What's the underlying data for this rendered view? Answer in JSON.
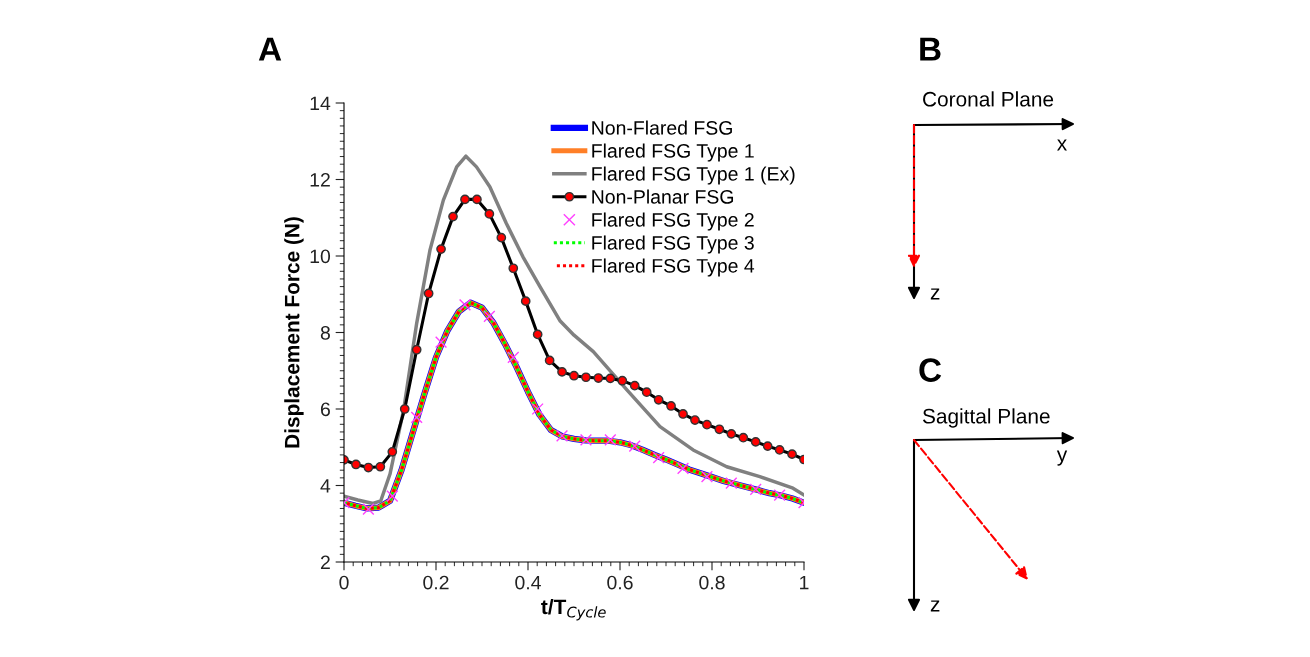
{
  "chart_data": {
    "type": "line",
    "xlabel": "t/T$_{Cycle}$",
    "ylabel": "Displacement Force (N)",
    "xlim": [
      0,
      1
    ],
    "ylim": [
      2,
      14
    ],
    "xticks": [
      0,
      0.2,
      0.4,
      0.6,
      0.8,
      1
    ],
    "yticks": [
      2,
      4,
      6,
      8,
      10,
      12,
      14
    ],
    "grid": false,
    "legend": "top right",
    "annotations": [
      "A",
      "B",
      "Coronal Plane",
      "x",
      "z",
      "C",
      "Sagittal Plane",
      "y",
      "z"
    ],
    "series": [
      {
        "name": "Non-Flared FSG",
        "type": "line",
        "color": "#0000ff",
        "line_style": "solid",
        "marker": "none",
        "x": [
          0,
          0.025,
          0.05,
          0.075,
          0.1,
          0.125,
          0.15,
          0.175,
          0.2,
          0.225,
          0.25,
          0.275,
          0.3,
          0.325,
          0.35,
          0.375,
          0.4,
          0.425,
          0.45,
          0.475,
          0.5,
          0.525,
          0.55,
          0.575,
          0.6,
          0.625,
          0.65,
          0.675,
          0.7,
          0.725,
          0.75,
          0.775,
          0.8,
          0.825,
          0.85,
          0.875,
          0.9,
          0.925,
          0.95,
          0.975,
          1
        ],
        "values": [
          3.55,
          3.47,
          3.4,
          3.42,
          3.6,
          4.4,
          5.4,
          6.4,
          7.35,
          8.05,
          8.55,
          8.78,
          8.65,
          8.25,
          7.7,
          7.1,
          6.45,
          5.85,
          5.45,
          5.28,
          5.22,
          5.18,
          5.17,
          5.17,
          5.13,
          5.05,
          4.93,
          4.8,
          4.68,
          4.55,
          4.42,
          4.32,
          4.22,
          4.12,
          4.04,
          3.96,
          3.88,
          3.8,
          3.74,
          3.66,
          3.55
        ]
      },
      {
        "name": "Flared FSG Type 1",
        "type": "line",
        "color": "#ff7f27",
        "line_style": "solid",
        "marker": "none",
        "x": [
          0,
          0.025,
          0.05,
          0.075,
          0.1,
          0.125,
          0.15,
          0.175,
          0.2,
          0.225,
          0.25,
          0.275,
          0.3,
          0.325,
          0.35,
          0.375,
          0.4,
          0.425,
          0.45,
          0.475,
          0.5,
          0.525,
          0.55,
          0.575,
          0.6,
          0.625,
          0.65,
          0.675,
          0.7,
          0.725,
          0.75,
          0.775,
          0.8,
          0.825,
          0.85,
          0.875,
          0.9,
          0.925,
          0.95,
          0.975,
          1
        ],
        "values": [
          3.55,
          3.47,
          3.4,
          3.42,
          3.6,
          4.4,
          5.4,
          6.4,
          7.35,
          8.05,
          8.55,
          8.78,
          8.65,
          8.25,
          7.7,
          7.1,
          6.45,
          5.85,
          5.45,
          5.28,
          5.22,
          5.18,
          5.17,
          5.17,
          5.13,
          5.05,
          4.93,
          4.8,
          4.68,
          4.55,
          4.42,
          4.32,
          4.22,
          4.12,
          4.04,
          3.96,
          3.88,
          3.8,
          3.74,
          3.66,
          3.55
        ]
      },
      {
        "name": "Flared FSG Type 1 (Ex)",
        "type": "line",
        "color": "#808080",
        "line_style": "solid",
        "marker": "none",
        "x": [
          0,
          0.03,
          0.063,
          0.08,
          0.1,
          0.13,
          0.158,
          0.187,
          0.216,
          0.245,
          0.265,
          0.288,
          0.317,
          0.353,
          0.389,
          0.426,
          0.47,
          0.5,
          0.542,
          0.615,
          0.687,
          0.759,
          0.832,
          0.904,
          0.976,
          1
        ],
        "values": [
          3.72,
          3.62,
          3.53,
          3.6,
          4.3,
          6.0,
          8.24,
          10.16,
          11.46,
          12.33,
          12.61,
          12.33,
          11.81,
          10.85,
          9.98,
          9.2,
          8.3,
          7.93,
          7.5,
          6.5,
          5.54,
          4.93,
          4.49,
          4.23,
          3.93,
          3.75
        ]
      },
      {
        "name": "Non-Planar FSG",
        "type": "line",
        "color": "#000000",
        "line_style": "solid",
        "marker": "circle",
        "x": [
          0,
          0.026,
          0.053,
          0.079,
          0.105,
          0.132,
          0.158,
          0.184,
          0.211,
          0.237,
          0.263,
          0.289,
          0.316,
          0.342,
          0.368,
          0.395,
          0.421,
          0.447,
          0.474,
          0.5,
          0.526,
          0.553,
          0.579,
          0.605,
          0.632,
          0.658,
          0.684,
          0.711,
          0.737,
          0.763,
          0.789,
          0.816,
          0.842,
          0.868,
          0.895,
          0.921,
          0.947,
          0.974,
          1
        ],
        "values": [
          4.67,
          4.55,
          4.47,
          4.49,
          4.88,
          6.0,
          7.55,
          9.02,
          10.18,
          11.03,
          11.48,
          11.48,
          11.1,
          10.48,
          9.68,
          8.82,
          7.95,
          7.27,
          6.97,
          6.87,
          6.83,
          6.81,
          6.8,
          6.74,
          6.61,
          6.44,
          6.24,
          6.08,
          5.87,
          5.71,
          5.59,
          5.47,
          5.35,
          5.25,
          5.14,
          5.03,
          4.93,
          4.82,
          4.68
        ]
      },
      {
        "name": "Flared FSG Type 2",
        "type": "scatter",
        "color": "#ff40ff",
        "marker": "cross",
        "x": [
          0,
          0.053,
          0.105,
          0.158,
          0.211,
          0.263,
          0.316,
          0.368,
          0.421,
          0.474,
          0.526,
          0.579,
          0.632,
          0.684,
          0.737,
          0.789,
          0.842,
          0.895,
          0.947,
          1
        ],
        "values": [
          3.55,
          3.38,
          3.72,
          5.78,
          7.75,
          8.72,
          8.42,
          7.35,
          6.0,
          5.3,
          5.19,
          5.19,
          5.03,
          4.73,
          4.45,
          4.23,
          4.06,
          3.9,
          3.75,
          3.55
        ]
      },
      {
        "name": "Flared FSG Type 3",
        "type": "line",
        "color": "#00ff00",
        "line_style": "dotted",
        "marker": "none",
        "x": [
          0,
          0.025,
          0.05,
          0.075,
          0.1,
          0.125,
          0.15,
          0.175,
          0.2,
          0.225,
          0.25,
          0.275,
          0.3,
          0.325,
          0.35,
          0.375,
          0.4,
          0.425,
          0.45,
          0.475,
          0.5,
          0.525,
          0.55,
          0.575,
          0.6,
          0.625,
          0.65,
          0.675,
          0.7,
          0.725,
          0.75,
          0.775,
          0.8,
          0.825,
          0.85,
          0.875,
          0.9,
          0.925,
          0.95,
          0.975,
          1
        ],
        "values": [
          3.55,
          3.47,
          3.4,
          3.42,
          3.6,
          4.4,
          5.4,
          6.4,
          7.35,
          8.05,
          8.55,
          8.78,
          8.65,
          8.25,
          7.7,
          7.1,
          6.45,
          5.85,
          5.45,
          5.28,
          5.22,
          5.18,
          5.17,
          5.17,
          5.13,
          5.05,
          4.93,
          4.8,
          4.68,
          4.55,
          4.42,
          4.32,
          4.22,
          4.12,
          4.04,
          3.96,
          3.88,
          3.8,
          3.74,
          3.66,
          3.55
        ]
      },
      {
        "name": "Flared FSG Type 4",
        "type": "line",
        "color": "#ff0000",
        "line_style": "dotted",
        "marker": "none",
        "x": [
          0,
          0.025,
          0.05,
          0.075,
          0.1,
          0.125,
          0.15,
          0.175,
          0.2,
          0.225,
          0.25,
          0.275,
          0.3,
          0.325,
          0.35,
          0.375,
          0.4,
          0.425,
          0.45,
          0.475,
          0.5,
          0.525,
          0.55,
          0.575,
          0.6,
          0.625,
          0.65,
          0.675,
          0.7,
          0.725,
          0.75,
          0.775,
          0.8,
          0.825,
          0.85,
          0.875,
          0.9,
          0.925,
          0.95,
          0.975,
          1
        ],
        "values": [
          3.55,
          3.47,
          3.4,
          3.42,
          3.6,
          4.4,
          5.4,
          6.4,
          7.35,
          8.05,
          8.55,
          8.78,
          8.65,
          8.25,
          7.7,
          7.1,
          6.45,
          5.85,
          5.45,
          5.28,
          5.22,
          5.18,
          5.17,
          5.17,
          5.13,
          5.05,
          4.93,
          4.8,
          4.68,
          4.55,
          4.42,
          4.32,
          4.22,
          4.12,
          4.04,
          3.96,
          3.88,
          3.8,
          3.74,
          3.66,
          3.55
        ]
      }
    ]
  }
}
